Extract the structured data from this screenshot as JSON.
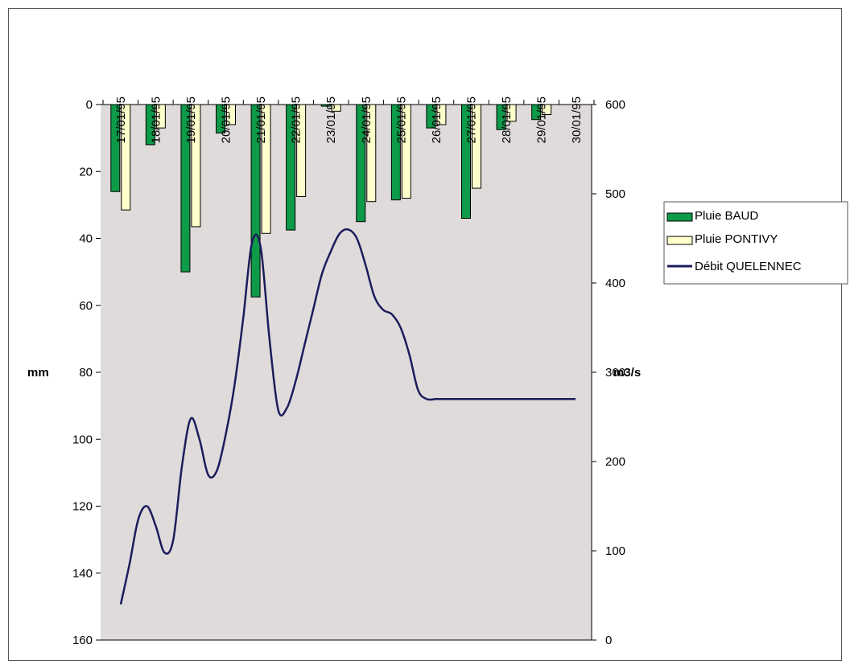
{
  "chart_data": {
    "type": "bar",
    "title": "",
    "categories": [
      "17/01/95",
      "18/01/95",
      "19/01/95",
      "20/01/95",
      "21/01/95",
      "22/01/95",
      "23/01/95",
      "24/01/95",
      "25/01/95",
      "26/01/95",
      "27/01/95",
      "28/01/95",
      "29/01/95",
      "30/01/95"
    ],
    "y_left": {
      "label": "mm",
      "range": [
        0,
        160
      ],
      "ticks": [
        0,
        20,
        40,
        60,
        80,
        100,
        120,
        140,
        160
      ],
      "inverted": true
    },
    "y_right": {
      "label": "m3/s",
      "range": [
        0,
        600
      ],
      "ticks": [
        0,
        100,
        200,
        300,
        400,
        500,
        600
      ]
    },
    "legend_position": "right",
    "grid": false,
    "plot_background": "#dfdbdb",
    "series": [
      {
        "name": "Pluie BAUD",
        "type": "bar",
        "axis": "left",
        "color": "#0d9a49",
        "values": [
          26,
          12,
          50,
          8.5,
          57.5,
          37.5,
          0.5,
          35,
          28.5,
          7,
          34,
          7.5,
          4.5,
          0
        ]
      },
      {
        "name": "Pluie PONTIVY",
        "type": "bar",
        "axis": "left",
        "color": "#ffffcc",
        "values": [
          31.5,
          7,
          36.5,
          6,
          38.5,
          27.5,
          2,
          29,
          28,
          6,
          25,
          5,
          3,
          0
        ]
      },
      {
        "name": "Débit QUELENNEC",
        "type": "line",
        "axis": "right",
        "color": "#1c1c5c",
        "x": [
          0,
          0.25,
          0.5,
          0.75,
          1,
          1.25,
          1.5,
          1.75,
          2,
          2.25,
          2.5,
          2.75,
          3,
          3.25,
          3.5,
          3.75,
          4,
          4.25,
          4.5,
          4.75,
          5,
          5.25,
          5.5,
          5.75,
          6,
          6.25,
          6.5,
          6.75,
          7,
          7.25,
          7.5,
          7.75,
          8,
          8.25,
          8.5,
          8.75,
          9,
          9.25,
          9.5,
          9.75,
          10,
          10.25,
          10.5,
          10.75,
          11,
          11.25,
          11.5,
          11.75,
          12,
          12.25,
          12.5,
          12.75,
          13
        ],
        "values": [
          40,
          85,
          135,
          150,
          128,
          98,
          112,
          195,
          248,
          225,
          185,
          190,
          230,
          285,
          360,
          445,
          440,
          338,
          258,
          260,
          290,
          330,
          370,
          410,
          435,
          455,
          460,
          450,
          420,
          385,
          370,
          365,
          350,
          320,
          280,
          270,
          270,
          270,
          270,
          270,
          270,
          270,
          270,
          270,
          270,
          270,
          270,
          270,
          270,
          270,
          270,
          270,
          270
        ]
      }
    ]
  }
}
